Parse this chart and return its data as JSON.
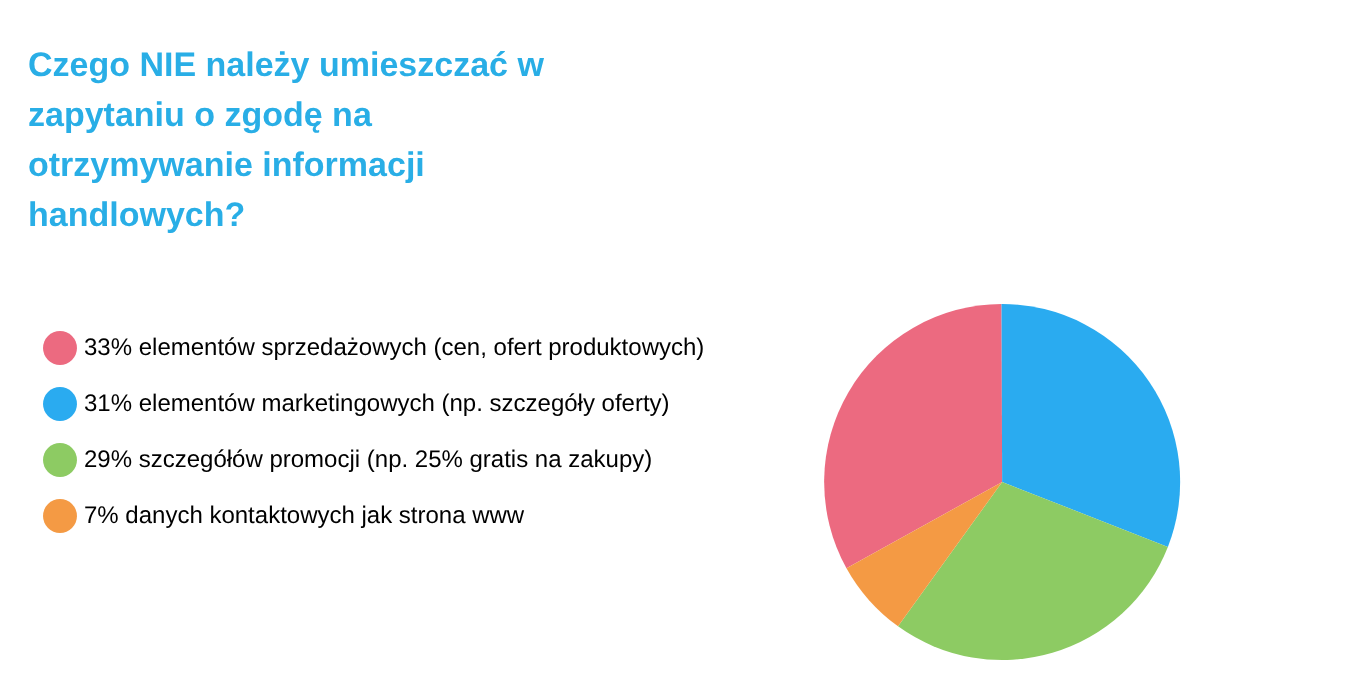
{
  "chart_data": {
    "type": "pie",
    "title": "Czego NIE należy umieszczać w zapytaniu o zgodę na otrzymywanie informacji handlowych?",
    "categories": [
      "elementów sprzedażowych (cen, ofert produktowych)",
      "elementów marketingowych (np. szczegóły oferty)",
      "szczegółów promocji (np. 25% gratis na zakupy)",
      "danych kontaktowych jak strona www"
    ],
    "values": [
      33,
      31,
      29,
      7
    ],
    "value_labels": [
      "33%",
      "31%",
      "29%",
      "7%"
    ],
    "colors": [
      "#ec6a80",
      "#2aabf0",
      "#8dcb63",
      "#f49a44"
    ],
    "legend": "left"
  }
}
